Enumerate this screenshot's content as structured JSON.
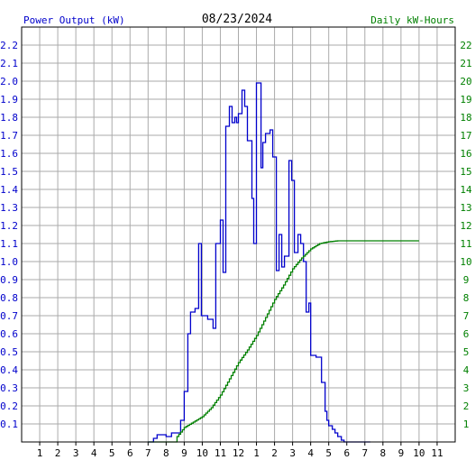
{
  "header": {
    "left_title": "Power Output (kW)",
    "date": "08/23/2024",
    "right_title": "Daily kW-Hours"
  },
  "colors": {
    "power": "#0000cc",
    "energy": "#008000",
    "grid": "#aaaaaa",
    "frame": "#000000",
    "background": "#ffffff"
  },
  "chart_data": {
    "type": "line",
    "title": "08/23/2024",
    "x_range": [
      0,
      24
    ],
    "x_tick_labels": [
      "1",
      "2",
      "3",
      "4",
      "5",
      "6",
      "7",
      "8",
      "9",
      "10",
      "11",
      "12",
      "1",
      "2",
      "3",
      "4",
      "5",
      "6",
      "7",
      "8",
      "9",
      "10",
      "11"
    ],
    "grid": true,
    "y_left": {
      "label": "Power Output (kW)",
      "range": [
        0,
        2.3
      ],
      "tick_labels": [
        "0.1",
        "0.2",
        "0.3",
        "0.4",
        "0.5",
        "0.6",
        "0.7",
        "0.8",
        "0.9",
        "1.0",
        "1.1",
        "1.2",
        "1.3",
        "1.4",
        "1.5",
        "1.6",
        "1.7",
        "1.8",
        "1.9",
        "2.0",
        "2.1",
        "2.2"
      ]
    },
    "y_right": {
      "label": "Daily kW-Hours",
      "range": [
        0,
        23
      ],
      "tick_labels": [
        "1",
        "2",
        "3",
        "4",
        "5",
        "6",
        "7",
        "8",
        "9",
        "10",
        "11",
        "12",
        "13",
        "14",
        "15",
        "16",
        "17",
        "18",
        "19",
        "20",
        "21",
        "22"
      ]
    },
    "series": [
      {
        "name": "Power Output (kW)",
        "axis": "left",
        "points": [
          [
            7.0,
            0.0
          ],
          [
            7.3,
            0.0
          ],
          [
            7.3,
            0.02
          ],
          [
            7.5,
            0.02
          ],
          [
            7.5,
            0.04
          ],
          [
            8.0,
            0.04
          ],
          [
            8.0,
            0.03
          ],
          [
            8.3,
            0.03
          ],
          [
            8.3,
            0.05
          ],
          [
            8.8,
            0.05
          ],
          [
            8.8,
            0.12
          ],
          [
            9.0,
            0.12
          ],
          [
            9.0,
            0.28
          ],
          [
            9.2,
            0.28
          ],
          [
            9.2,
            0.6
          ],
          [
            9.35,
            0.6
          ],
          [
            9.35,
            0.72
          ],
          [
            9.6,
            0.72
          ],
          [
            9.6,
            0.74
          ],
          [
            9.8,
            0.74
          ],
          [
            9.8,
            1.1
          ],
          [
            9.95,
            1.1
          ],
          [
            9.95,
            0.7
          ],
          [
            10.3,
            0.7
          ],
          [
            10.3,
            0.68
          ],
          [
            10.6,
            0.68
          ],
          [
            10.6,
            0.63
          ],
          [
            10.75,
            0.63
          ],
          [
            10.75,
            1.1
          ],
          [
            11.0,
            1.1
          ],
          [
            11.0,
            1.23
          ],
          [
            11.15,
            1.23
          ],
          [
            11.15,
            0.94
          ],
          [
            11.3,
            0.94
          ],
          [
            11.3,
            1.75
          ],
          [
            11.5,
            1.75
          ],
          [
            11.5,
            1.86
          ],
          [
            11.65,
            1.86
          ],
          [
            11.65,
            1.77
          ],
          [
            11.8,
            1.77
          ],
          [
            11.8,
            1.8
          ],
          [
            11.9,
            1.8
          ],
          [
            11.9,
            1.77
          ],
          [
            12.0,
            1.77
          ],
          [
            12.0,
            1.82
          ],
          [
            12.2,
            1.82
          ],
          [
            12.2,
            1.95
          ],
          [
            12.35,
            1.95
          ],
          [
            12.35,
            1.86
          ],
          [
            12.5,
            1.86
          ],
          [
            12.5,
            1.67
          ],
          [
            12.75,
            1.67
          ],
          [
            12.75,
            1.35
          ],
          [
            12.85,
            1.35
          ],
          [
            12.85,
            1.1
          ],
          [
            13.0,
            1.1
          ],
          [
            13.0,
            1.99
          ],
          [
            13.25,
            1.99
          ],
          [
            13.25,
            1.52
          ],
          [
            13.35,
            1.52
          ],
          [
            13.35,
            1.66
          ],
          [
            13.5,
            1.66
          ],
          [
            13.5,
            1.71
          ],
          [
            13.75,
            1.71
          ],
          [
            13.75,
            1.73
          ],
          [
            13.9,
            1.73
          ],
          [
            13.9,
            1.58
          ],
          [
            14.1,
            1.58
          ],
          [
            14.1,
            0.95
          ],
          [
            14.25,
            0.95
          ],
          [
            14.25,
            1.15
          ],
          [
            14.4,
            1.15
          ],
          [
            14.4,
            0.97
          ],
          [
            14.55,
            0.97
          ],
          [
            14.55,
            1.03
          ],
          [
            14.8,
            1.03
          ],
          [
            14.8,
            1.56
          ],
          [
            14.95,
            1.56
          ],
          [
            14.95,
            1.45
          ],
          [
            15.1,
            1.45
          ],
          [
            15.1,
            1.05
          ],
          [
            15.3,
            1.05
          ],
          [
            15.3,
            1.15
          ],
          [
            15.45,
            1.15
          ],
          [
            15.45,
            1.1
          ],
          [
            15.6,
            1.1
          ],
          [
            15.6,
            1.0
          ],
          [
            15.75,
            1.0
          ],
          [
            15.75,
            0.72
          ],
          [
            15.9,
            0.72
          ],
          [
            15.9,
            0.77
          ],
          [
            16.0,
            0.77
          ],
          [
            16.0,
            0.48
          ],
          [
            16.3,
            0.48
          ],
          [
            16.3,
            0.47
          ],
          [
            16.6,
            0.47
          ],
          [
            16.6,
            0.33
          ],
          [
            16.8,
            0.33
          ],
          [
            16.8,
            0.17
          ],
          [
            16.9,
            0.17
          ],
          [
            16.9,
            0.12
          ],
          [
            17.0,
            0.12
          ],
          [
            17.0,
            0.09
          ],
          [
            17.2,
            0.09
          ],
          [
            17.2,
            0.07
          ],
          [
            17.35,
            0.07
          ],
          [
            17.35,
            0.05
          ],
          [
            17.5,
            0.05
          ],
          [
            17.5,
            0.03
          ],
          [
            17.7,
            0.03
          ],
          [
            17.7,
            0.01
          ],
          [
            17.85,
            0.01
          ],
          [
            17.85,
            0.0
          ],
          [
            19.3,
            0.0
          ]
        ]
      },
      {
        "name": "Daily kW-Hours",
        "axis": "right",
        "points": [
          [
            7.0,
            0.0
          ],
          [
            8.5,
            0.0
          ],
          [
            8.6,
            0.3
          ],
          [
            9.0,
            0.8
          ],
          [
            9.5,
            1.1
          ],
          [
            10.0,
            1.4
          ],
          [
            10.5,
            1.9
          ],
          [
            11.0,
            2.6
          ],
          [
            11.5,
            3.5
          ],
          [
            12.0,
            4.4
          ],
          [
            12.5,
            5.1
          ],
          [
            13.0,
            5.9
          ],
          [
            13.5,
            6.9
          ],
          [
            14.0,
            7.9
          ],
          [
            14.5,
            8.7
          ],
          [
            15.0,
            9.6
          ],
          [
            15.5,
            10.2
          ],
          [
            16.0,
            10.7
          ],
          [
            16.5,
            11.0
          ],
          [
            17.0,
            11.1
          ],
          [
            17.5,
            11.15
          ],
          [
            19.0,
            11.15
          ],
          [
            22.0,
            11.15
          ]
        ]
      }
    ]
  }
}
